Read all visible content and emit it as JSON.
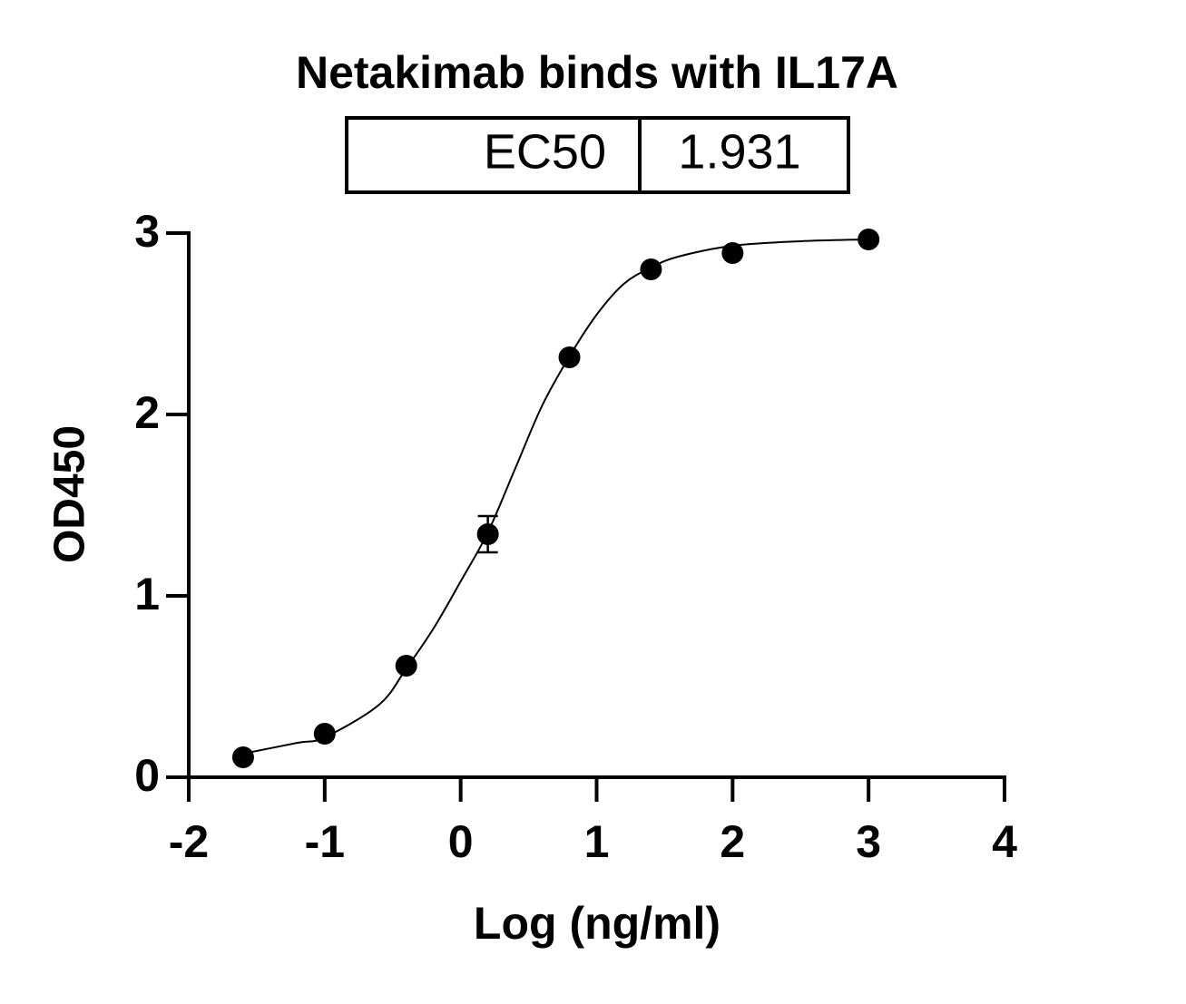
{
  "chart_data": {
    "type": "scatter",
    "title": "Netakimab binds with IL17A",
    "ec50_label": "EC50",
    "ec50_value": 1.931,
    "xlabel": "Log (ng/ml)",
    "ylabel": "OD450",
    "x": [
      -1.6,
      -1,
      -0.4,
      0.2,
      0.8,
      1.4,
      2,
      3
    ],
    "values": [
      0.11,
      0.24,
      0.615,
      1.34,
      2.315,
      2.8,
      2.89,
      2.965
    ],
    "errors": [
      null,
      null,
      null,
      0.1,
      null,
      null,
      null,
      null
    ],
    "color": "#000000",
    "fit": {
      "x": [
        -1.6,
        -1.2,
        -1,
        -0.6,
        -0.4,
        -0.2,
        0,
        0.2,
        0.4,
        0.6,
        0.8,
        1,
        1.2,
        1.4,
        1.6,
        2,
        2.5,
        3
      ],
      "values": [
        0.13,
        0.19,
        0.22,
        0.4,
        0.6,
        0.82,
        1.08,
        1.35,
        1.7,
        2.05,
        2.32,
        2.55,
        2.72,
        2.81,
        2.87,
        2.93,
        2.955,
        2.965
      ]
    },
    "xlim": [
      -2,
      4
    ],
    "xticks": [
      -2,
      -1,
      0,
      1,
      2,
      3,
      4
    ],
    "ylim": [
      0,
      3
    ],
    "yticks": [
      0,
      1,
      2,
      3
    ]
  }
}
